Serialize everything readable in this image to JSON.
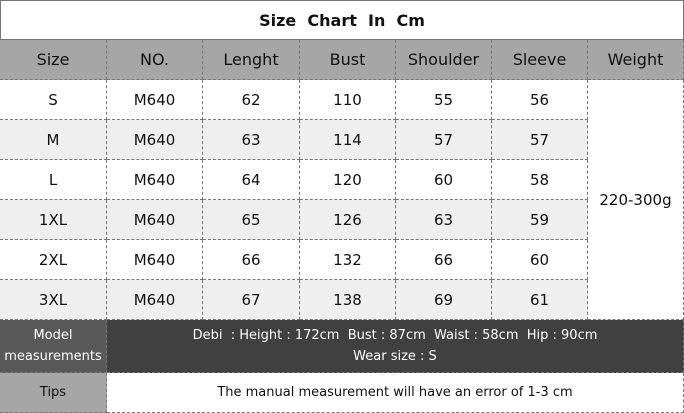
{
  "title": "Size  Chart  In  Cm",
  "table": {
    "header": [
      "Size",
      "NO.",
      "Lenght",
      "Bust",
      "Shoulder",
      "Sleeve",
      "Weight"
    ],
    "rows": [
      [
        "S",
        "M640",
        62,
        110,
        55,
        56
      ],
      [
        "M",
        "M640",
        63,
        114,
        57,
        57
      ],
      [
        "L",
        "M640",
        64,
        120,
        60,
        58
      ],
      [
        "1XL",
        "M640",
        65,
        126,
        63,
        59
      ],
      [
        "2XL",
        "M640",
        66,
        132,
        66,
        60
      ],
      [
        "3XL",
        "M640",
        67,
        138,
        69,
        61
      ]
    ],
    "weight": "220-300g"
  },
  "model": {
    "label": "Model measurements",
    "lines": [
      "Debi  : Height : 172cm  Bust : 87cm  Waist : 58cm  Hip : 90cm",
      "Wear size : S"
    ]
  },
  "tips": {
    "label": "Tips",
    "text": "The manual measurement will have an error of 1-3 cm"
  }
}
